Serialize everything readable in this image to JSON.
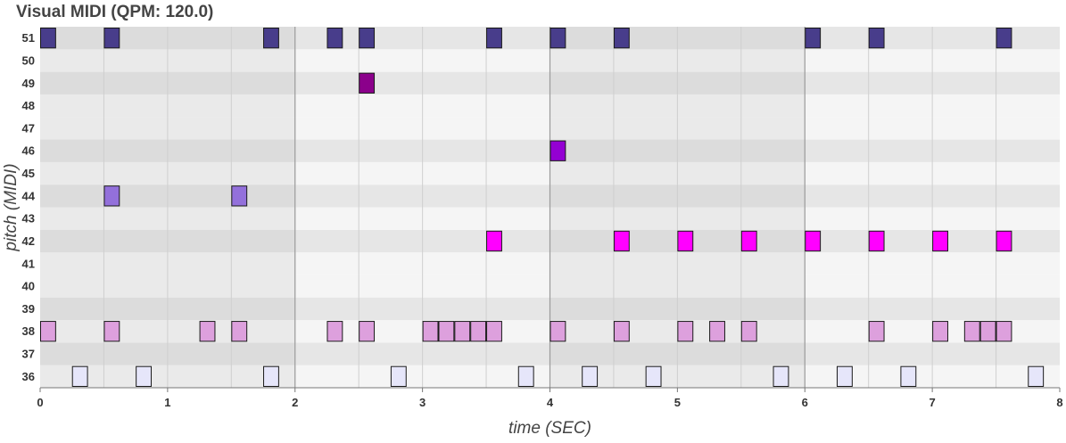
{
  "chart_data": {
    "type": "scatter",
    "title": "Visual MIDI (QPM: 120.0)",
    "xlabel": "time (SEC)",
    "ylabel": "pitch (MIDI)",
    "xlim": [
      0,
      8
    ],
    "x_ticks": [
      0,
      1,
      2,
      3,
      4,
      5,
      6,
      7,
      8
    ],
    "y_ticks": [
      36,
      37,
      38,
      39,
      40,
      41,
      42,
      43,
      44,
      45,
      46,
      47,
      48,
      49,
      50,
      51
    ],
    "beat_interval": 0.5,
    "bar_interval": 2,
    "note_duration": 0.125,
    "grid": true,
    "legend": "none",
    "colors": {
      "36": "#e6e6fa",
      "38": "#dda0dd",
      "42": "#ff00ff",
      "44": "#9370db",
      "46": "#9400d3",
      "49": "#8b008b",
      "51": "#483d8b",
      "row_light": "#f5f5f5",
      "row_dark": "#e6e6e6",
      "black_keys": [
        37,
        39,
        42,
        44,
        46,
        49,
        51
      ]
    },
    "series": [
      {
        "pitch": 51,
        "x": [
          0.0,
          0.5,
          1.75,
          2.25,
          2.5,
          3.5,
          4.0,
          4.5,
          6.0,
          6.5,
          7.5
        ]
      },
      {
        "pitch": 49,
        "x": [
          2.5
        ]
      },
      {
        "pitch": 46,
        "x": [
          4.0
        ]
      },
      {
        "pitch": 44,
        "x": [
          0.5,
          1.5
        ]
      },
      {
        "pitch": 42,
        "x": [
          3.5,
          4.5,
          5.0,
          5.5,
          6.0,
          6.5,
          7.0,
          7.5
        ]
      },
      {
        "pitch": 38,
        "x": [
          0.0,
          0.5,
          1.25,
          1.5,
          2.25,
          2.5,
          3.0,
          3.125,
          3.25,
          3.375,
          3.5,
          4.0,
          4.5,
          5.0,
          5.25,
          5.5,
          6.5,
          7.0,
          7.25,
          7.375,
          7.5
        ]
      },
      {
        "pitch": 36,
        "x": [
          0.25,
          0.75,
          1.75,
          2.75,
          3.75,
          4.25,
          4.75,
          5.75,
          6.25,
          6.75,
          7.75
        ]
      }
    ]
  }
}
